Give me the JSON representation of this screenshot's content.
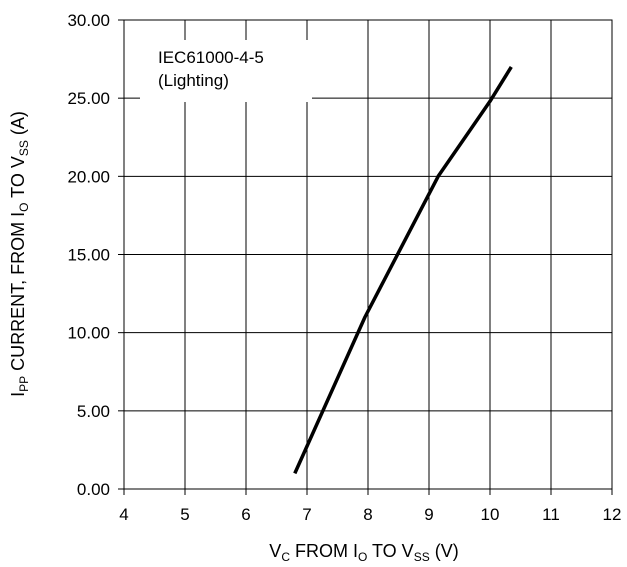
{
  "chart_data": {
    "type": "line",
    "xlabel": "V_C FROM I_O TO V_SS (V)",
    "xlabel_parts": {
      "v": "V",
      "c": "C",
      "from": " FROM I",
      "o": "O",
      "to": " TO V",
      "ss": "SS",
      "unit": " (V)"
    },
    "ylabel": "I_PP CURRENT, FROM I_O TO V_SS (A)",
    "ylabel_parts": {
      "i": "I",
      "pp": "PP",
      "current": " CURRENT, FROM I",
      "o": "O",
      "to": " TO V",
      "ss": "SS",
      "unit": " (A)"
    },
    "xlim": [
      4,
      12
    ],
    "ylim": [
      0,
      30
    ],
    "x_ticks": [
      4,
      5,
      6,
      7,
      8,
      9,
      10,
      11,
      12
    ],
    "y_ticks": [
      0,
      5,
      10,
      15,
      20,
      25,
      30
    ],
    "x_tick_labels": [
      "4",
      "5",
      "6",
      "7",
      "8",
      "9",
      "10",
      "11",
      "12"
    ],
    "y_tick_labels": [
      "0.00",
      "5.00",
      "10.00",
      "15.00",
      "20.00",
      "25.00",
      "30.00"
    ],
    "grid": {
      "horizontal": true,
      "vertical": true
    },
    "annotation": {
      "line1": "IEC61000-4-5",
      "line2": "(Lighting)",
      "position": "top-left"
    },
    "series": [
      {
        "color": "#000000",
        "points": [
          {
            "x": 6.8,
            "y": 1.0
          },
          {
            "x": 7.95,
            "y": 11.0
          },
          {
            "x": 9.15,
            "y": 20.0
          },
          {
            "x": 10.0,
            "y": 24.8
          },
          {
            "x": 10.35,
            "y": 27.0
          }
        ]
      }
    ]
  }
}
